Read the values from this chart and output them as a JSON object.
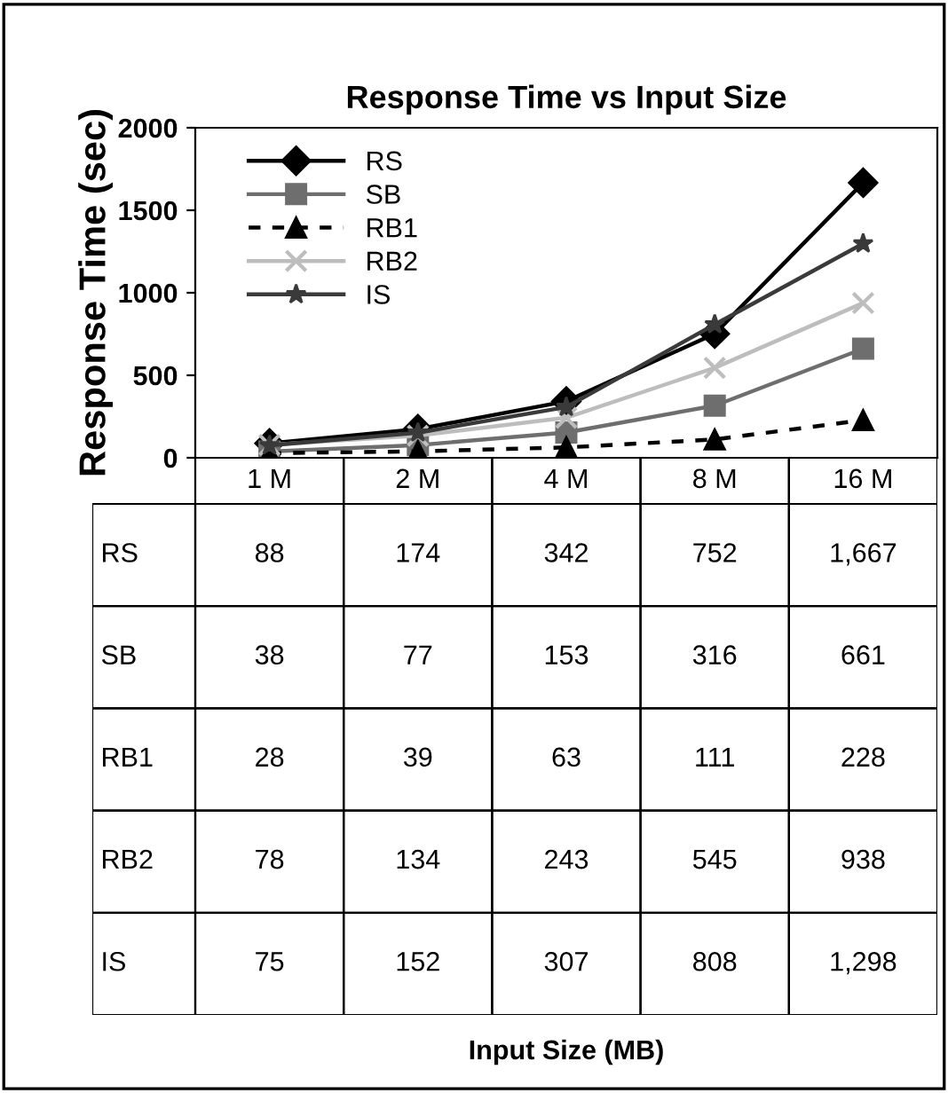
{
  "chart_data": {
    "type": "line",
    "title": "Response Time vs Input Size",
    "ylabel": "Response Time (sec)",
    "annotations": [
      "Input Size (MB)"
    ],
    "categories": [
      "1 M",
      "2 M",
      "4 M",
      "8 M",
      "16 M"
    ],
    "ylim": [
      0,
      2000
    ],
    "yticks": [
      0,
      500,
      1000,
      1500,
      2000
    ],
    "grid": false,
    "legend": "top left",
    "series": [
      {
        "name": "RS",
        "color": "#000000",
        "marker": "diamond",
        "line_style": "solid",
        "values": [
          88,
          174,
          342,
          752,
          1667
        ],
        "value_labels": [
          "88",
          "174",
          "342",
          "752",
          "1,667"
        ]
      },
      {
        "name": "SB",
        "color": "#6e6e6e",
        "marker": "square",
        "line_style": "solid",
        "values": [
          38,
          77,
          153,
          316,
          661
        ],
        "value_labels": [
          "38",
          "77",
          "153",
          "316",
          "661"
        ]
      },
      {
        "name": "RB1",
        "color": "#000000",
        "marker": "triangle",
        "line_style": "dashed",
        "values": [
          28,
          39,
          63,
          111,
          228
        ],
        "value_labels": [
          "28",
          "39",
          "63",
          "111",
          "228"
        ]
      },
      {
        "name": "RB2",
        "color": "#bdbdbd",
        "marker": "cross",
        "line_style": "solid",
        "values": [
          78,
          134,
          243,
          545,
          938
        ],
        "value_labels": [
          "78",
          "134",
          "243",
          "545",
          "938"
        ]
      },
      {
        "name": "IS",
        "color": "#3a3a3a",
        "marker": "star",
        "line_style": "solid",
        "values": [
          75,
          152,
          307,
          808,
          1298
        ],
        "value_labels": [
          "75",
          "152",
          "307",
          "808",
          "1,298"
        ]
      }
    ]
  }
}
